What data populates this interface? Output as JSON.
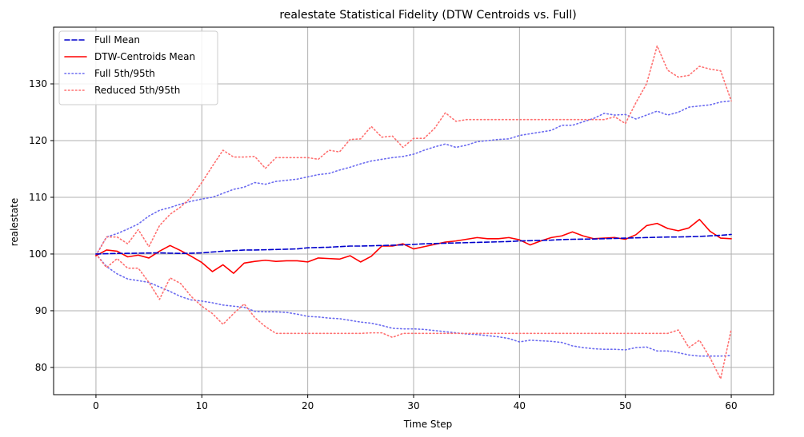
{
  "chart_data": {
    "type": "line",
    "title": "realestate Statistical Fidelity (DTW Centroids vs. Full)",
    "xlabel": "Time Step",
    "ylabel": "realestate",
    "xlim": [
      -4,
      64
    ],
    "ylim": [
      75.2,
      140
    ],
    "xticks": [
      0,
      10,
      20,
      30,
      40,
      50,
      60
    ],
    "yticks": [
      80,
      90,
      100,
      110,
      120,
      130
    ],
    "grid": true,
    "legend_position": "upper-left",
    "x": [
      0,
      1,
      2,
      3,
      4,
      5,
      6,
      7,
      8,
      9,
      10,
      11,
      12,
      13,
      14,
      15,
      16,
      17,
      18,
      19,
      20,
      21,
      22,
      23,
      24,
      25,
      26,
      27,
      28,
      29,
      30,
      31,
      32,
      33,
      34,
      35,
      36,
      37,
      38,
      39,
      40,
      41,
      42,
      43,
      44,
      45,
      46,
      47,
      48,
      49,
      50,
      51,
      52,
      53,
      54,
      55,
      56,
      57,
      58,
      59,
      60
    ],
    "series": [
      {
        "name": "Full Mean",
        "color": "#0000cc",
        "dash": "dashed",
        "values": [
          100.0,
          100.05,
          100.1,
          100.12,
          100.15,
          100.18,
          100.2,
          100.15,
          100.1,
          100.15,
          100.2,
          100.35,
          100.5,
          100.6,
          100.7,
          100.7,
          100.75,
          100.8,
          100.85,
          100.9,
          101.1,
          101.15,
          101.2,
          101.3,
          101.4,
          101.4,
          101.45,
          101.5,
          101.55,
          101.6,
          101.7,
          101.8,
          101.85,
          101.9,
          101.95,
          102.0,
          102.05,
          102.1,
          102.15,
          102.2,
          102.3,
          102.35,
          102.4,
          102.45,
          102.55,
          102.6,
          102.62,
          102.65,
          102.7,
          102.75,
          102.8,
          102.85,
          102.9,
          102.95,
          103.0,
          103.0,
          103.05,
          103.1,
          103.2,
          103.3,
          103.45
        ]
      },
      {
        "name": "DTW-Centroids Mean",
        "color": "#ff0000",
        "dash": "solid",
        "values": [
          99.7,
          100.7,
          100.5,
          99.5,
          99.8,
          99.3,
          100.5,
          101.5,
          100.6,
          99.6,
          98.5,
          96.9,
          98.1,
          96.6,
          98.4,
          98.7,
          98.9,
          98.7,
          98.8,
          98.8,
          98.6,
          99.3,
          99.2,
          99.1,
          99.7,
          98.6,
          99.6,
          101.4,
          101.4,
          101.8,
          100.9,
          101.3,
          101.7,
          102.1,
          102.3,
          102.6,
          102.9,
          102.7,
          102.7,
          102.9,
          102.5,
          101.6,
          102.3,
          102.9,
          103.2,
          103.9,
          103.2,
          102.7,
          102.8,
          102.9,
          102.6,
          103.4,
          105.0,
          105.4,
          104.5,
          104.1,
          104.6,
          106.1,
          104.0,
          102.8,
          102.7
        ]
      },
      {
        "name": "Full 5th/95th",
        "color": "#6b6bf0",
        "dash": "dotted",
        "values": [
          99.8,
          103.0,
          103.6,
          104.4,
          105.3,
          106.7,
          107.7,
          108.2,
          108.8,
          109.3,
          109.7,
          110.0,
          110.7,
          111.4,
          111.8,
          112.6,
          112.3,
          112.8,
          113.0,
          113.2,
          113.6,
          114.0,
          114.2,
          114.8,
          115.3,
          115.9,
          116.4,
          116.7,
          117.0,
          117.2,
          117.6,
          118.3,
          118.9,
          119.4,
          118.8,
          119.2,
          119.8,
          120.0,
          120.2,
          120.3,
          120.9,
          121.2,
          121.5,
          121.8,
          122.7,
          122.7,
          123.3,
          123.9,
          124.8,
          124.5,
          124.6,
          123.8,
          124.5,
          125.2,
          124.5,
          125.0,
          125.9,
          126.1,
          126.3,
          126.8,
          127.0
        ]
      },
      {
        "name": "",
        "color": "#6b6bf0",
        "dash": "dotted",
        "values": [
          100.0,
          97.8,
          96.5,
          95.6,
          95.3,
          95.0,
          94.2,
          93.4,
          92.5,
          91.9,
          91.7,
          91.4,
          91.0,
          90.8,
          90.6,
          89.9,
          89.8,
          89.8,
          89.7,
          89.4,
          89.0,
          88.9,
          88.7,
          88.6,
          88.3,
          88.0,
          87.8,
          87.4,
          86.9,
          86.8,
          86.8,
          86.7,
          86.5,
          86.3,
          86.1,
          85.9,
          85.8,
          85.6,
          85.4,
          85.1,
          84.5,
          84.8,
          84.7,
          84.6,
          84.4,
          83.8,
          83.5,
          83.3,
          83.2,
          83.2,
          83.1,
          83.5,
          83.6,
          82.9,
          82.9,
          82.6,
          82.2,
          82.0,
          82.0,
          82.0,
          82.1
        ]
      },
      {
        "name": "Reduced 5th/95th",
        "color": "#ff7070",
        "dash": "dotted",
        "values": [
          99.7,
          103.0,
          103.0,
          101.8,
          104.3,
          101.3,
          105.0,
          107.0,
          108.3,
          110.0,
          112.6,
          115.5,
          118.3,
          117.1,
          117.1,
          117.2,
          115.1,
          117.0,
          117.0,
          117.0,
          117.0,
          116.7,
          118.3,
          118.0,
          120.2,
          120.3,
          122.5,
          120.6,
          120.8,
          118.8,
          120.4,
          120.4,
          122.2,
          124.9,
          123.4,
          123.7,
          123.7,
          123.7,
          123.7,
          123.7,
          123.7,
          123.7,
          123.7,
          123.7,
          123.7,
          123.7,
          123.7,
          123.7,
          123.7,
          124.2,
          123.0,
          126.7,
          130.0,
          136.7,
          132.4,
          131.2,
          131.5,
          133.1,
          132.6,
          132.3,
          127.0
        ]
      },
      {
        "name": "",
        "color": "#ff7070",
        "dash": "dotted",
        "values": [
          100.0,
          97.6,
          99.2,
          97.5,
          97.5,
          95.0,
          92.0,
          95.8,
          94.8,
          92.5,
          90.8,
          89.5,
          87.6,
          89.5,
          91.2,
          88.8,
          87.2,
          86.0,
          86.0,
          86.0,
          86.0,
          86.0,
          86.0,
          86.0,
          86.0,
          86.0,
          86.1,
          86.1,
          85.3,
          86.0,
          86.0,
          86.0,
          86.0,
          86.0,
          86.0,
          86.0,
          86.0,
          86.0,
          86.0,
          86.0,
          86.0,
          86.0,
          86.0,
          86.0,
          86.0,
          86.0,
          86.0,
          86.0,
          86.0,
          86.0,
          86.0,
          86.0,
          86.0,
          86.0,
          86.0,
          86.6,
          83.5,
          84.8,
          81.7,
          78.0,
          86.7
        ]
      }
    ],
    "legend": [
      {
        "label": "Full Mean",
        "color": "#0000cc",
        "dash": "dashed"
      },
      {
        "label": "DTW-Centroids Mean",
        "color": "#ff0000",
        "dash": "solid"
      },
      {
        "label": "Full 5th/95th",
        "color": "#6b6bf0",
        "dash": "dotted"
      },
      {
        "label": "Reduced 5th/95th",
        "color": "#ff7070",
        "dash": "dotted"
      }
    ]
  }
}
